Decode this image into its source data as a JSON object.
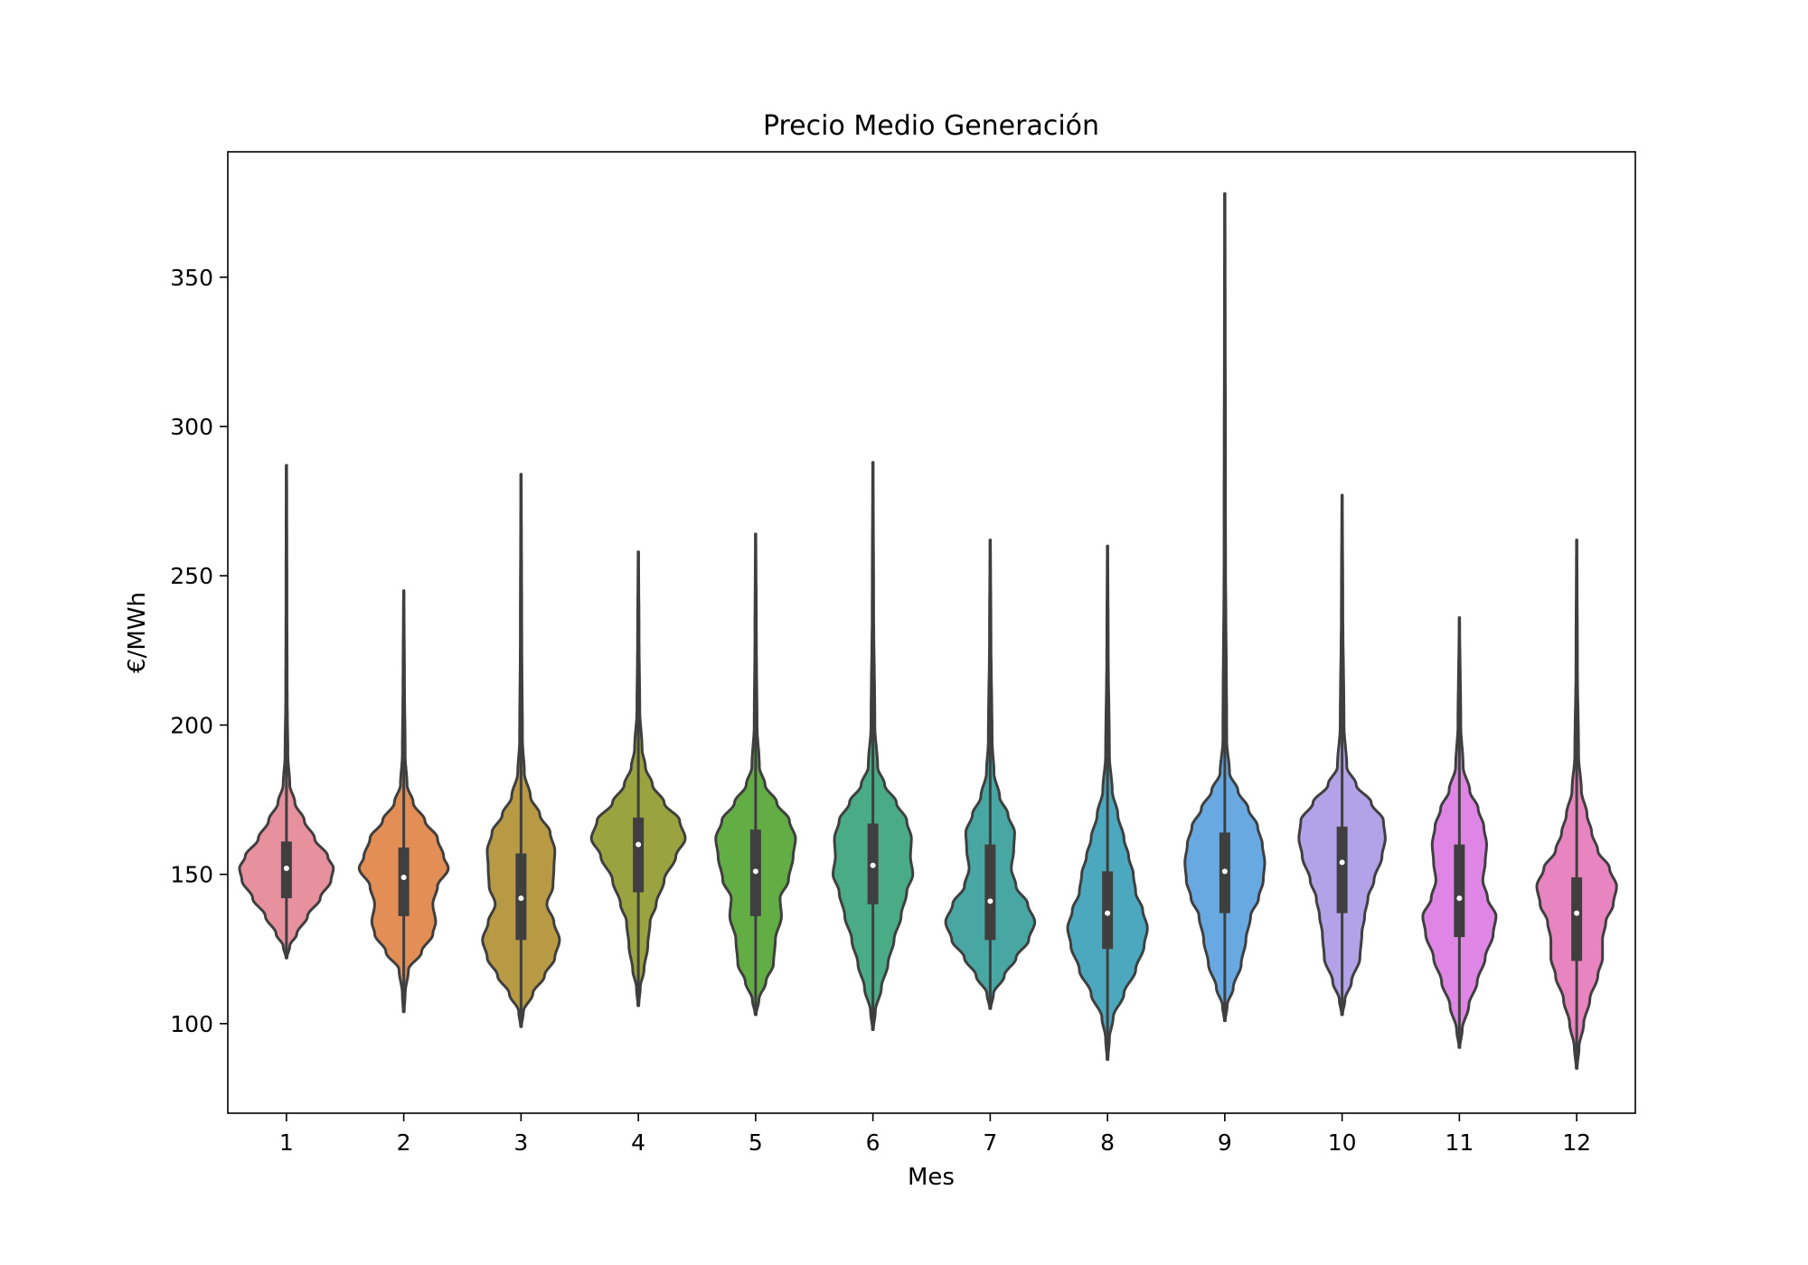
{
  "chart_data": {
    "type": "violin",
    "title": "Precio Medio Generación",
    "xlabel": "Mes",
    "ylabel": "€/MWh",
    "ylim": [
      70,
      392
    ],
    "yticks": [
      100,
      150,
      200,
      250,
      300,
      350
    ],
    "grid": false,
    "legend": "none",
    "categories": [
      "1",
      "2",
      "3",
      "4",
      "5",
      "6",
      "7",
      "8",
      "9",
      "10",
      "11",
      "12"
    ],
    "colors": [
      "#e8919e",
      "#e28e55",
      "#b89a45",
      "#99a33f",
      "#63ad45",
      "#4aac86",
      "#48a7a3",
      "#4ba8bf",
      "#68a9e1",
      "#b2a3e8",
      "#df85e6",
      "#e884bf"
    ],
    "series": [
      {
        "month": "1",
        "min": 122,
        "max": 287,
        "q1": 142,
        "median": 152,
        "q3": 161,
        "profile": [
          [
            122,
            0.01
          ],
          [
            126,
            0.07
          ],
          [
            130,
            0.22
          ],
          [
            136,
            0.45
          ],
          [
            142,
            0.72
          ],
          [
            148,
            0.95
          ],
          [
            152,
            1.0
          ],
          [
            156,
            0.88
          ],
          [
            162,
            0.6
          ],
          [
            168,
            0.38
          ],
          [
            174,
            0.18
          ],
          [
            180,
            0.07
          ],
          [
            190,
            0.03
          ],
          [
            210,
            0.015
          ],
          [
            240,
            0.01
          ],
          [
            287,
            0.005
          ]
        ]
      },
      {
        "month": "2",
        "min": 104,
        "max": 245,
        "q1": 136,
        "median": 149,
        "q3": 159,
        "profile": [
          [
            104,
            0.01
          ],
          [
            110,
            0.03
          ],
          [
            118,
            0.1
          ],
          [
            124,
            0.38
          ],
          [
            130,
            0.62
          ],
          [
            134,
            0.68
          ],
          [
            140,
            0.62
          ],
          [
            146,
            0.72
          ],
          [
            152,
            0.95
          ],
          [
            156,
            0.85
          ],
          [
            162,
            0.72
          ],
          [
            168,
            0.45
          ],
          [
            174,
            0.2
          ],
          [
            180,
            0.07
          ],
          [
            190,
            0.03
          ],
          [
            215,
            0.015
          ],
          [
            245,
            0.005
          ]
        ]
      },
      {
        "month": "3",
        "min": 99,
        "max": 284,
        "q1": 128,
        "median": 142,
        "q3": 157,
        "profile": [
          [
            99,
            0.01
          ],
          [
            104,
            0.05
          ],
          [
            110,
            0.25
          ],
          [
            116,
            0.5
          ],
          [
            122,
            0.72
          ],
          [
            128,
            0.82
          ],
          [
            134,
            0.7
          ],
          [
            140,
            0.55
          ],
          [
            146,
            0.68
          ],
          [
            152,
            0.7
          ],
          [
            158,
            0.72
          ],
          [
            164,
            0.62
          ],
          [
            170,
            0.4
          ],
          [
            176,
            0.2
          ],
          [
            184,
            0.07
          ],
          [
            195,
            0.03
          ],
          [
            230,
            0.015
          ],
          [
            284,
            0.005
          ]
        ]
      },
      {
        "month": "4",
        "min": 106,
        "max": 258,
        "q1": 144,
        "median": 160,
        "q3": 169,
        "profile": [
          [
            106,
            0.01
          ],
          [
            112,
            0.04
          ],
          [
            118,
            0.12
          ],
          [
            126,
            0.2
          ],
          [
            134,
            0.25
          ],
          [
            140,
            0.38
          ],
          [
            148,
            0.55
          ],
          [
            156,
            0.8
          ],
          [
            162,
            1.0
          ],
          [
            168,
            0.88
          ],
          [
            174,
            0.55
          ],
          [
            180,
            0.3
          ],
          [
            186,
            0.15
          ],
          [
            192,
            0.08
          ],
          [
            205,
            0.03
          ],
          [
            230,
            0.015
          ],
          [
            258,
            0.005
          ]
        ]
      },
      {
        "month": "5",
        "min": 103,
        "max": 264,
        "q1": 136,
        "median": 151,
        "q3": 165,
        "profile": [
          [
            103,
            0.01
          ],
          [
            108,
            0.07
          ],
          [
            114,
            0.22
          ],
          [
            120,
            0.38
          ],
          [
            128,
            0.42
          ],
          [
            136,
            0.55
          ],
          [
            142,
            0.52
          ],
          [
            148,
            0.7
          ],
          [
            156,
            0.8
          ],
          [
            162,
            0.85
          ],
          [
            168,
            0.72
          ],
          [
            174,
            0.45
          ],
          [
            180,
            0.2
          ],
          [
            186,
            0.08
          ],
          [
            200,
            0.03
          ],
          [
            230,
            0.015
          ],
          [
            264,
            0.005
          ]
        ]
      },
      {
        "month": "6",
        "min": 98,
        "max": 288,
        "q1": 140,
        "median": 153,
        "q3": 167,
        "profile": [
          [
            98,
            0.01
          ],
          [
            104,
            0.05
          ],
          [
            112,
            0.18
          ],
          [
            120,
            0.32
          ],
          [
            128,
            0.45
          ],
          [
            136,
            0.6
          ],
          [
            144,
            0.72
          ],
          [
            150,
            0.85
          ],
          [
            156,
            0.8
          ],
          [
            162,
            0.82
          ],
          [
            168,
            0.72
          ],
          [
            174,
            0.5
          ],
          [
            180,
            0.25
          ],
          [
            186,
            0.1
          ],
          [
            200,
            0.04
          ],
          [
            240,
            0.015
          ],
          [
            288,
            0.005
          ]
        ]
      },
      {
        "month": "7",
        "min": 105,
        "max": 262,
        "q1": 128,
        "median": 141,
        "q3": 160,
        "profile": [
          [
            105,
            0.01
          ],
          [
            110,
            0.07
          ],
          [
            116,
            0.3
          ],
          [
            122,
            0.55
          ],
          [
            128,
            0.82
          ],
          [
            134,
            0.95
          ],
          [
            140,
            0.8
          ],
          [
            146,
            0.55
          ],
          [
            152,
            0.45
          ],
          [
            158,
            0.5
          ],
          [
            164,
            0.52
          ],
          [
            170,
            0.38
          ],
          [
            176,
            0.2
          ],
          [
            184,
            0.08
          ],
          [
            195,
            0.04
          ],
          [
            230,
            0.015
          ],
          [
            262,
            0.005
          ]
        ]
      },
      {
        "month": "8",
        "min": 88,
        "max": 260,
        "q1": 125,
        "median": 137,
        "q3": 151,
        "profile": [
          [
            88,
            0.01
          ],
          [
            95,
            0.04
          ],
          [
            102,
            0.12
          ],
          [
            110,
            0.35
          ],
          [
            118,
            0.6
          ],
          [
            126,
            0.78
          ],
          [
            132,
            0.85
          ],
          [
            138,
            0.75
          ],
          [
            144,
            0.6
          ],
          [
            150,
            0.55
          ],
          [
            156,
            0.45
          ],
          [
            162,
            0.35
          ],
          [
            170,
            0.22
          ],
          [
            178,
            0.1
          ],
          [
            190,
            0.04
          ],
          [
            225,
            0.015
          ],
          [
            260,
            0.005
          ]
        ]
      },
      {
        "month": "9",
        "min": 101,
        "max": 378,
        "q1": 137,
        "median": 151,
        "q3": 164,
        "profile": [
          [
            101,
            0.01
          ],
          [
            106,
            0.05
          ],
          [
            112,
            0.18
          ],
          [
            120,
            0.35
          ],
          [
            128,
            0.45
          ],
          [
            136,
            0.55
          ],
          [
            142,
            0.72
          ],
          [
            148,
            0.82
          ],
          [
            154,
            0.85
          ],
          [
            160,
            0.8
          ],
          [
            166,
            0.7
          ],
          [
            172,
            0.5
          ],
          [
            178,
            0.28
          ],
          [
            184,
            0.1
          ],
          [
            195,
            0.04
          ],
          [
            260,
            0.015
          ],
          [
            378,
            0.005
          ]
        ]
      },
      {
        "month": "10",
        "min": 103,
        "max": 277,
        "q1": 137,
        "median": 154,
        "q3": 166,
        "profile": [
          [
            103,
            0.01
          ],
          [
            108,
            0.06
          ],
          [
            114,
            0.2
          ],
          [
            122,
            0.38
          ],
          [
            130,
            0.42
          ],
          [
            136,
            0.48
          ],
          [
            142,
            0.55
          ],
          [
            148,
            0.68
          ],
          [
            156,
            0.85
          ],
          [
            162,
            0.92
          ],
          [
            168,
            0.88
          ],
          [
            174,
            0.62
          ],
          [
            180,
            0.3
          ],
          [
            186,
            0.1
          ],
          [
            200,
            0.04
          ],
          [
            240,
            0.015
          ],
          [
            277,
            0.005
          ]
        ]
      },
      {
        "month": "11",
        "min": 92,
        "max": 236,
        "q1": 129,
        "median": 142,
        "q3": 160,
        "profile": [
          [
            92,
            0.01
          ],
          [
            98,
            0.06
          ],
          [
            106,
            0.2
          ],
          [
            114,
            0.38
          ],
          [
            122,
            0.55
          ],
          [
            130,
            0.72
          ],
          [
            136,
            0.78
          ],
          [
            142,
            0.6
          ],
          [
            148,
            0.5
          ],
          [
            154,
            0.55
          ],
          [
            160,
            0.58
          ],
          [
            166,
            0.52
          ],
          [
            172,
            0.4
          ],
          [
            178,
            0.22
          ],
          [
            186,
            0.08
          ],
          [
            200,
            0.03
          ],
          [
            236,
            0.005
          ]
        ]
      },
      {
        "month": "12",
        "min": 85,
        "max": 262,
        "q1": 121,
        "median": 137,
        "q3": 149,
        "profile": [
          [
            85,
            0.01
          ],
          [
            92,
            0.05
          ],
          [
            100,
            0.15
          ],
          [
            108,
            0.28
          ],
          [
            116,
            0.45
          ],
          [
            122,
            0.55
          ],
          [
            128,
            0.55
          ],
          [
            134,
            0.62
          ],
          [
            140,
            0.78
          ],
          [
            146,
            0.85
          ],
          [
            152,
            0.7
          ],
          [
            158,
            0.45
          ],
          [
            164,
            0.32
          ],
          [
            170,
            0.22
          ],
          [
            178,
            0.1
          ],
          [
            190,
            0.04
          ],
          [
            220,
            0.015
          ],
          [
            262,
            0.005
          ]
        ]
      }
    ]
  }
}
